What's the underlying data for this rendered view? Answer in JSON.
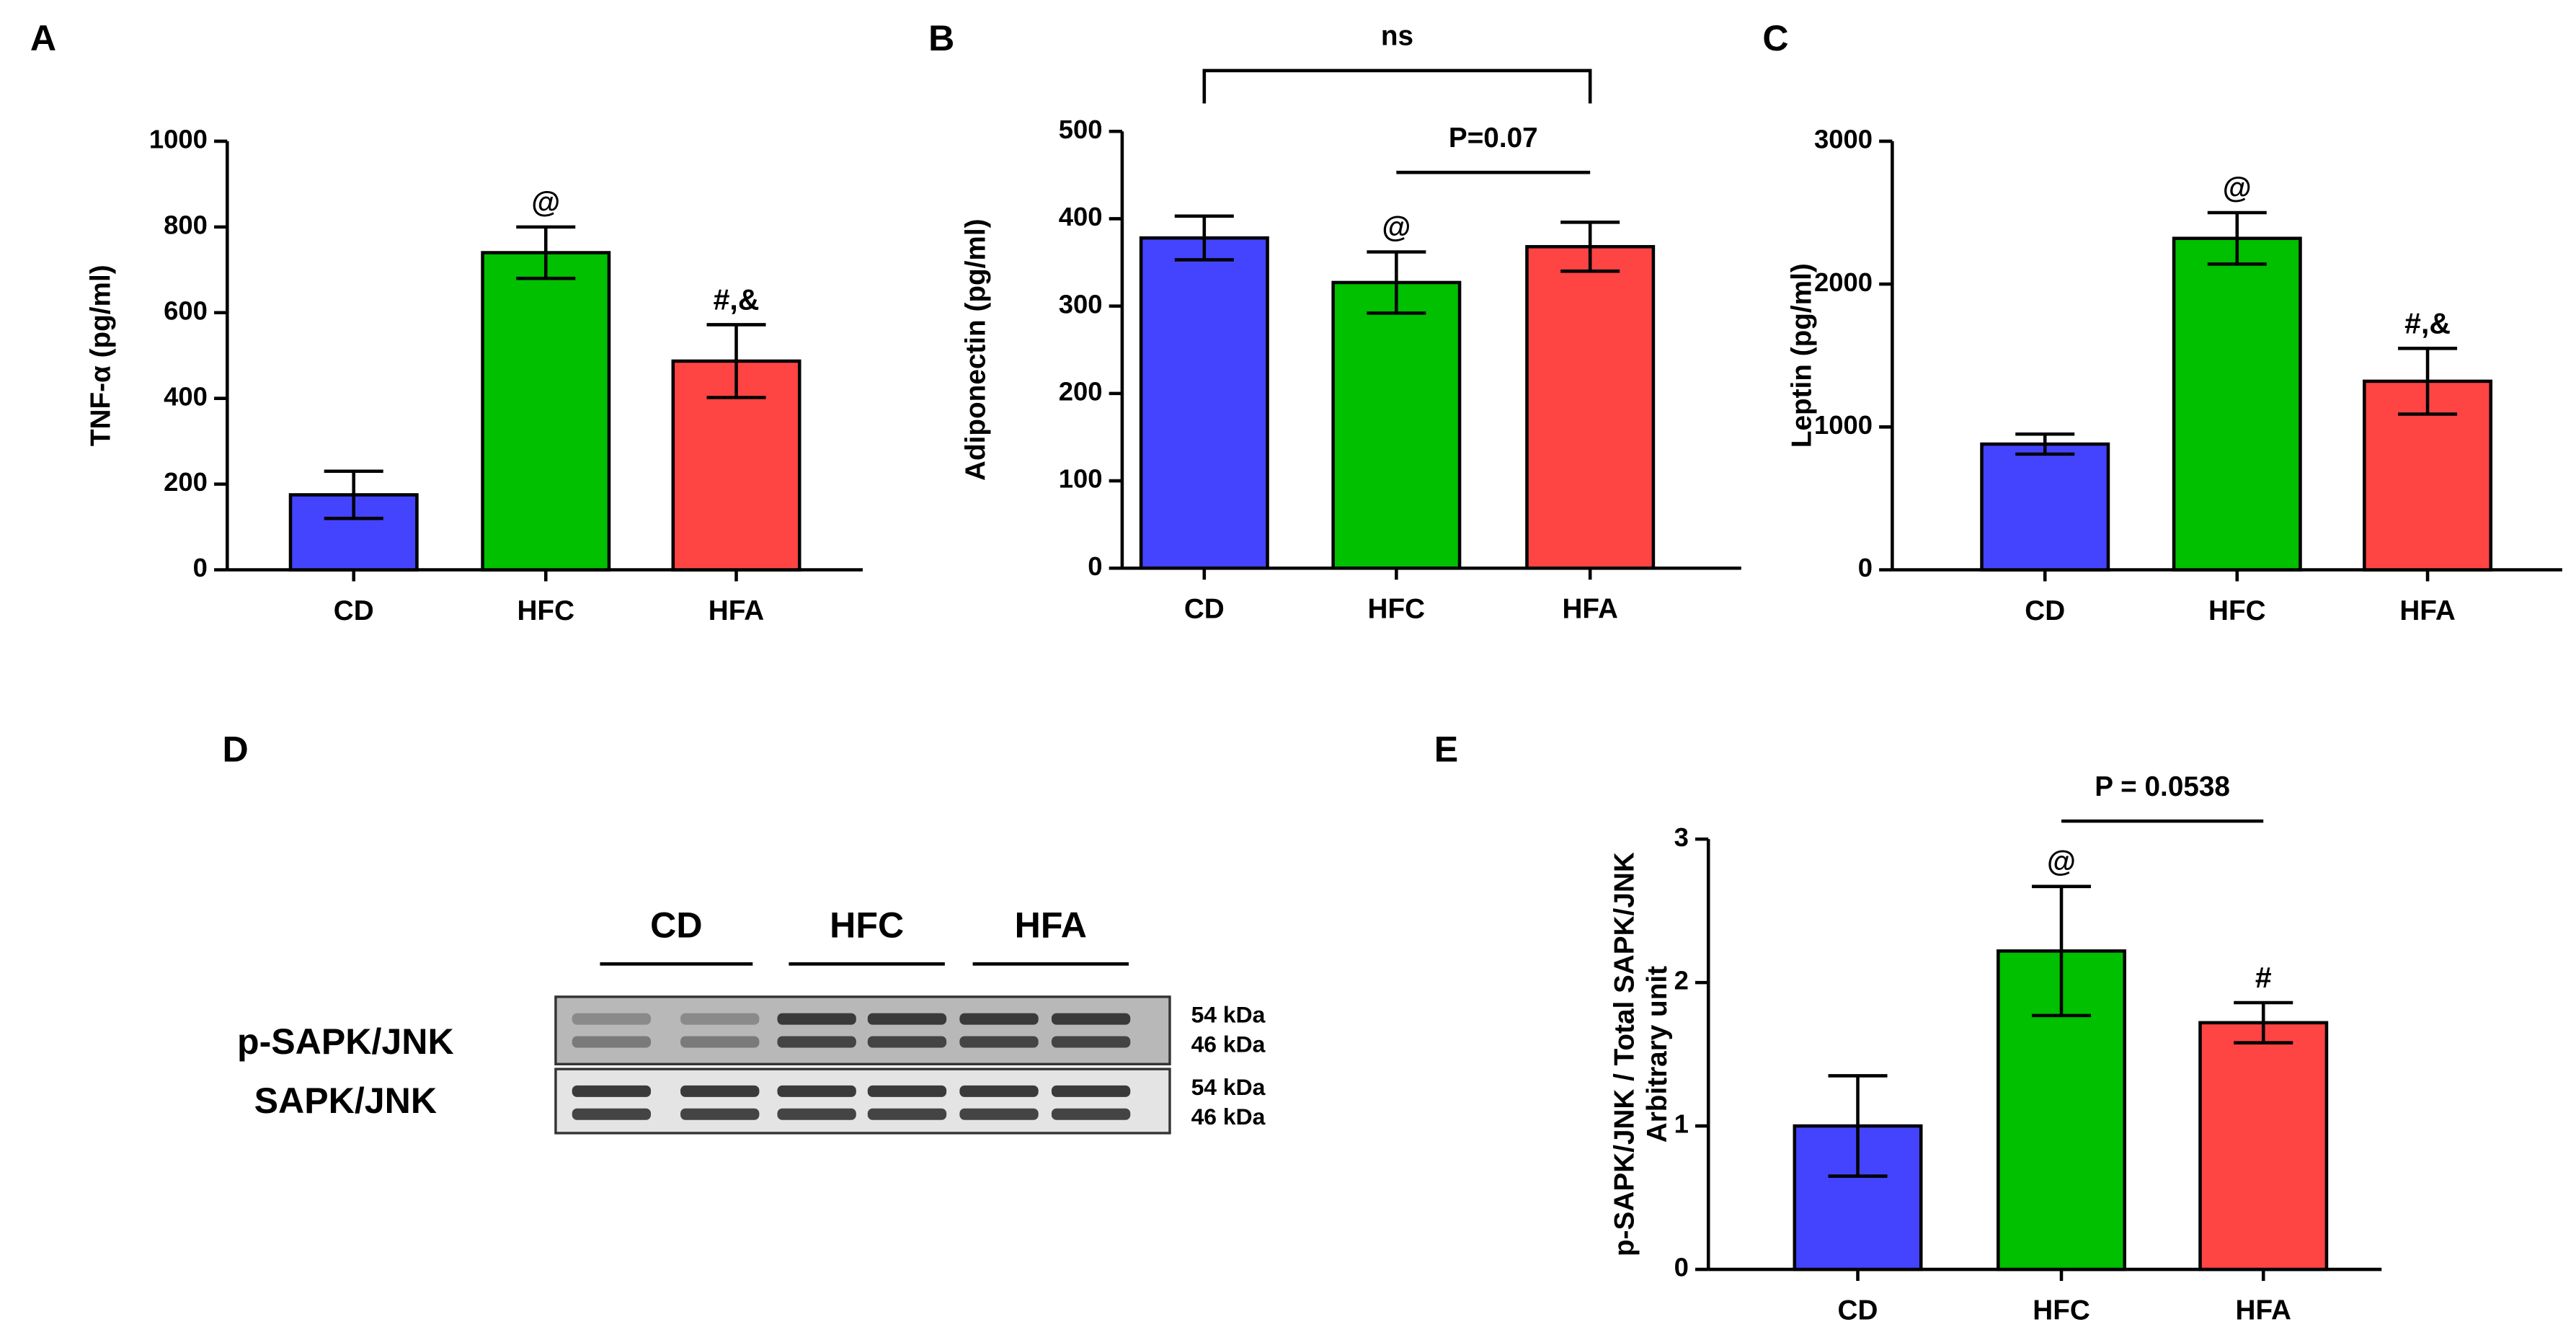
{
  "chart_data": [
    {
      "type": "bar",
      "panel": "A",
      "ylabel": [
        "TNF-α (pg/ml)"
      ],
      "categories": [
        "CD",
        "HFC",
        "HFA"
      ],
      "values": [
        175,
        740,
        487
      ],
      "errors": [
        55,
        60,
        85
      ],
      "colors": [
        "#4444ff",
        "#00c000",
        "#ff4444"
      ],
      "bar_labels": [
        null,
        "@",
        "#,&"
      ],
      "ylim": [
        0,
        1000
      ],
      "yticks": [
        0,
        200,
        400,
        600,
        800,
        1000
      ]
    },
    {
      "type": "bar",
      "panel": "B",
      "ylabel": [
        "Adiponectin (pg/ml)"
      ],
      "categories": [
        "CD",
        "HFC",
        "HFA"
      ],
      "values": [
        378,
        327,
        368
      ],
      "errors": [
        25,
        35,
        28
      ],
      "colors": [
        "#4444ff",
        "#00c000",
        "#ff4444"
      ],
      "bar_labels": [
        null,
        "@",
        null
      ],
      "ylim": [
        0,
        500
      ],
      "yticks": [
        0,
        100,
        200,
        300,
        400,
        500
      ],
      "brackets": [
        {
          "between": [
            "CD",
            "HFA"
          ],
          "label": "ns"
        },
        {
          "between": [
            "HFC",
            "HFA"
          ],
          "label": "P=0.07"
        }
      ]
    },
    {
      "type": "bar",
      "panel": "C",
      "ylabel": [
        "Leptin (pg/ml)"
      ],
      "categories": [
        "CD",
        "HFC",
        "HFA"
      ],
      "values": [
        880,
        2320,
        1320
      ],
      "errors": [
        70,
        180,
        230
      ],
      "colors": [
        "#4444ff",
        "#00c000",
        "#ff4444"
      ],
      "bar_labels": [
        null,
        "@",
        "#,&"
      ],
      "ylim": [
        0,
        3000
      ],
      "yticks": [
        0,
        1000,
        2000,
        3000
      ]
    },
    {
      "type": "bar",
      "panel": "E",
      "ylabel": [
        "p-SAPK/JNK / Total SAPK/JNK",
        "Arbitrary unit"
      ],
      "categories": [
        "CD",
        "HFC",
        "HFA"
      ],
      "values": [
        1.0,
        2.22,
        1.72
      ],
      "errors": [
        0.35,
        0.45,
        0.14
      ],
      "colors": [
        "#4444ff",
        "#00c000",
        "#ff4444"
      ],
      "bar_labels": [
        null,
        "@",
        "#"
      ],
      "ylim": [
        0,
        3
      ],
      "yticks": [
        0,
        1,
        2,
        3
      ],
      "brackets": [
        {
          "between": [
            "HFC",
            "HFA"
          ],
          "label": "P = 0.0538"
        }
      ]
    }
  ],
  "blot": {
    "panel": "D",
    "groups": [
      "CD",
      "HFC",
      "HFA"
    ],
    "rows": [
      "p-SAPK/JNK",
      "SAPK/JNK"
    ],
    "sizes": [
      [
        "54 kDa",
        "46 kDa"
      ],
      [
        "54 kDa",
        "46 kDa"
      ]
    ]
  }
}
